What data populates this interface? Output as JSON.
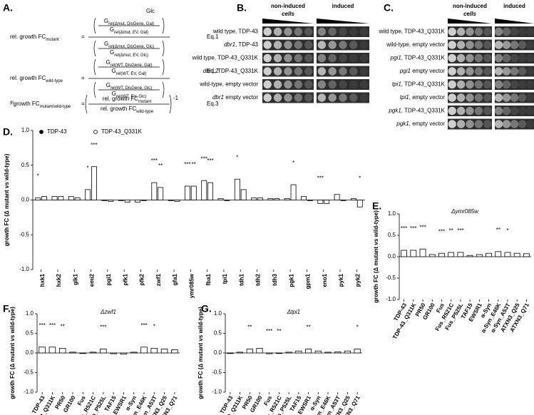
{
  "panel_a": {
    "label": "A.",
    "header": "Glc",
    "equations": [
      {
        "lhs": "rel. growth FC",
        "lhs_sub": "mutant",
        "relation": "=",
        "num": [
          {
            "sym": "G",
            "sub": "rel(Δmut, DisGene, Gal)"
          },
          {
            "sym": "G",
            "sub": "rel(Δmut, EV, Gal)"
          }
        ],
        "den": [
          {
            "sym": "G",
            "sub": "rel(Δmut, DisGene, Glc)"
          },
          {
            "sym": "G",
            "sub": "rel(Δmut, EV, Glc)"
          }
        ],
        "tag": "Eq.1"
      },
      {
        "lhs": "rel. growth FC",
        "lhs_sub": "wild-type",
        "relation": "=",
        "num": [
          {
            "sym": "G",
            "sub": "rel(WT, DisGene, Gal)"
          },
          {
            "sym": "G",
            "sub": "rel(WT, EV, Gal)"
          }
        ],
        "den": [
          {
            "sym": "G",
            "sub": "rel(WT, DisGene, Glc)"
          },
          {
            "sym": "G",
            "sub": "rel(WT, EV, Glc)"
          }
        ],
        "tag": "Eq.2"
      },
      {
        "lhs_sup": "gi",
        "lhs": "growth FC",
        "lhs_sub": "mutant/wild-type",
        "relation": "=",
        "num": [
          {
            "sym": "rel. growth FC",
            "sub": "mutant"
          }
        ],
        "den": [
          {
            "sym": "rel. growth FC",
            "sub": "wild-type"
          }
        ],
        "suffix": "-1",
        "tag": "Eq.3"
      }
    ]
  },
  "panel_b": {
    "label": "B.",
    "header_left": "non-induced",
    "header_left_sub": "cells",
    "header_right": "induced",
    "rows": [
      {
        "text": "wild type, TDP-43"
      },
      {
        "gene": "dbr1",
        "text": ", TDP-43"
      },
      {
        "text": "wild type, TDP-43_Q331K"
      },
      {
        "gene": "dbr1",
        "text": ", TDP-43_Q331K"
      },
      {
        "text": "wild-type, empty vector"
      },
      {
        "gene": "dbr1",
        "text": " empty vector"
      }
    ]
  },
  "panel_c": {
    "label": "C.",
    "header_left": "non-induced",
    "header_left_sub": "cells",
    "header_right": "induced",
    "rows": [
      {
        "text": "wild type, TDP-43_Q331K"
      },
      {
        "text": "wild-type, empty vector"
      },
      {
        "gene": "pgi1",
        "text": ", TDP-43_Q331K"
      },
      {
        "gene": "pgi1",
        "text": " empty vector"
      },
      {
        "gene": "tpi1",
        "text": ", TDP-43_Q331K"
      },
      {
        "gene": "tpi1",
        "text": ", empty vector"
      },
      {
        "gene": "pgk1",
        "text": ", TDP-43_Q331K"
      },
      {
        "gene": "pgk1",
        "text": ", empty vector"
      }
    ]
  },
  "chart_data": [
    {
      "type": "bar",
      "panel": "D.",
      "ylabel": "growth FC (Δ mutant vs wild-type)",
      "legend": "top-left",
      "categories": [
        "hxk1",
        "hxk2",
        "glk1",
        "emi2",
        "pgi1",
        "pfk1",
        "pfk2",
        "zwf1",
        "gfa1",
        "ymr085w",
        "fba1",
        "tpi1",
        "tdh1",
        "tdh2",
        "tdh3",
        "pgk1",
        "gpm1",
        "eno1",
        "pyk1",
        "pyk2"
      ],
      "series": [
        {
          "name": "TDP-43",
          "color": "#ffffff",
          "marker_color": "#000000",
          "values": [
            0.03,
            0.05,
            0.05,
            0.15,
            0.0,
            0.0,
            -0.03,
            0.25,
            0.0,
            0.2,
            0.28,
            0.02,
            0.3,
            0.03,
            0.02,
            0.02,
            0.05,
            -0.05,
            0.08,
            0.02
          ],
          "significance": [
            "*",
            null,
            null,
            "*",
            null,
            null,
            null,
            "***",
            null,
            "***",
            "***",
            null,
            "*",
            null,
            null,
            null,
            null,
            "***",
            null,
            null
          ]
        },
        {
          "name": "TDP-43_Q331K",
          "color": "#ffffff",
          "marker_color": "#ffffff",
          "values": [
            0.05,
            0.05,
            0.03,
            0.48,
            -0.02,
            -0.03,
            0.0,
            0.18,
            -0.02,
            0.2,
            0.25,
            0.0,
            0.15,
            0.03,
            0.02,
            0.22,
            0.0,
            -0.05,
            0.0,
            -0.1
          ],
          "significance": [
            null,
            null,
            null,
            "***",
            null,
            null,
            null,
            "**",
            null,
            "**",
            "***",
            null,
            null,
            null,
            null,
            "*",
            null,
            null,
            null,
            "*"
          ]
        }
      ],
      "ylim": [
        -1,
        1
      ],
      "yticks": [
        {
          "value": -1,
          "label": "-1.0"
        },
        {
          "value": -0.5,
          "label": "-0.5"
        },
        {
          "value": 0,
          "label": "0.0"
        },
        {
          "value": 0.5,
          "label": "0.5"
        },
        {
          "value": 1,
          "label": "1.0"
        }
      ]
    },
    {
      "type": "bar",
      "panel": "E.",
      "subtitle": "Δymr085w",
      "ylabel": "growth FC (Δ mutant vs wild-type)",
      "color": "#ffffff",
      "categories": [
        "TDP-43",
        "TDP-43_Q311K",
        "PR50",
        "GR100",
        "Fus",
        "Fus_R521C",
        "Fus_P525L",
        "TAF15",
        "EWSR1",
        "α-Syn",
        "α-Syn_E46K",
        "α-Syn_A53T",
        "ATXN3_Q25",
        "ATXN3_Q71"
      ],
      "values": [
        0.15,
        0.15,
        0.18,
        0.05,
        0.08,
        0.1,
        0.1,
        0.03,
        0.05,
        0.08,
        0.12,
        0.1,
        0.08,
        0.07
      ],
      "significance": [
        "***",
        "***",
        "***",
        null,
        "***",
        "**",
        "***",
        null,
        null,
        null,
        "**",
        "*",
        null,
        null
      ],
      "ylim": [
        -1,
        1
      ],
      "yticks": [
        {
          "value": -1,
          "label": "-1.0"
        },
        {
          "value": -0.5,
          "label": "-0.5"
        },
        {
          "value": 0,
          "label": "0.0"
        },
        {
          "value": 0.5,
          "label": "0.5"
        },
        {
          "value": 1,
          "label": "1.0"
        }
      ]
    },
    {
      "type": "bar",
      "panel": "F.",
      "subtitle": "Δzwf1",
      "ylabel": "growth FC (Δ mutant vs wild-type)",
      "color": "#ffffff",
      "categories": [
        "TDP-43",
        "TDP-43_Q311K",
        "PR50",
        "GR100",
        "Fus",
        "Fus_R521C",
        "Fus_P525L",
        "TAF15",
        "EWSR1",
        "α-Syn",
        "α-Syn_E46K",
        "α-Syn_A53T",
        "ATXN3_Q25",
        "ATXN3_Q71"
      ],
      "values": [
        0.15,
        0.15,
        0.12,
        0.02,
        0.0,
        0.02,
        0.1,
        -0.02,
        -0.03,
        0.02,
        0.15,
        0.12,
        0.1,
        0.08
      ],
      "significance": [
        "***",
        "***",
        "**",
        null,
        null,
        null,
        "***",
        null,
        null,
        null,
        "***",
        "*",
        null,
        null
      ],
      "ylim": [
        -1,
        1
      ],
      "yticks": [
        {
          "value": -1,
          "label": "-1.0"
        },
        {
          "value": -0.5,
          "label": "-0.5"
        },
        {
          "value": 0,
          "label": "0.0"
        },
        {
          "value": 0.5,
          "label": "0.5"
        },
        {
          "value": 1,
          "label": "1.0"
        }
      ]
    },
    {
      "type": "bar",
      "panel": "G.",
      "subtitle": "Δtpi1",
      "ylabel": "growth FC (Δ mutant vs wild-type)",
      "color": "#ffffff",
      "categories": [
        "TDP-43",
        "TDP-43_Q311K",
        "PR50",
        "GR100",
        "Fus",
        "Fus_R521C",
        "Fus_P525L",
        "TAF15",
        "EWSR1",
        "α-Syn",
        "α-Syn_E46K",
        "α-Syn_A53T",
        "ATXN3_Q25",
        "ATXN3_Q71"
      ],
      "values": [
        0.0,
        0.02,
        0.1,
        0.12,
        -0.02,
        0.0,
        0.02,
        0.05,
        0.1,
        0.05,
        0.02,
        0.03,
        0.05,
        0.1
      ],
      "significance": [
        null,
        null,
        "**",
        null,
        "***",
        "**",
        null,
        null,
        "**",
        null,
        null,
        null,
        null,
        "*"
      ],
      "ylim": [
        -1,
        1
      ],
      "yticks": [
        {
          "value": -1,
          "label": "-1.0"
        },
        {
          "value": -0.5,
          "label": "-0.5"
        },
        {
          "value": 0,
          "label": "0.0"
        },
        {
          "value": 0.5,
          "label": "0.5"
        },
        {
          "value": 1,
          "label": "1.0"
        }
      ]
    }
  ]
}
